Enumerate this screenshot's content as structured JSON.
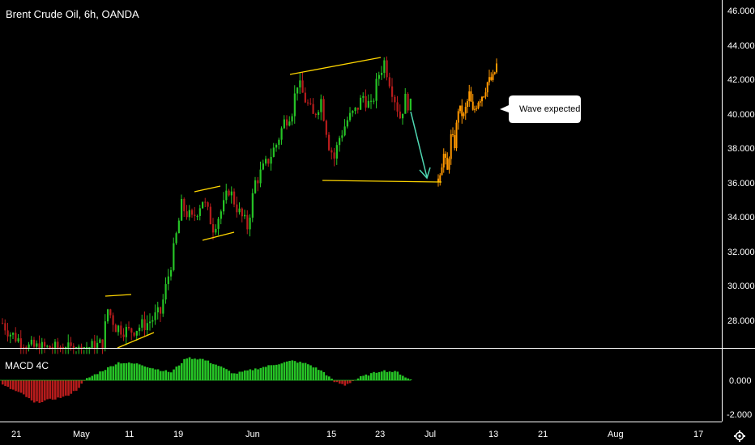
{
  "chart_data": {
    "type": "candlestick",
    "title": "Brent Crude Oil, 6h, OANDA",
    "indicator": {
      "name": "MACD 4C",
      "yticks": [
        "0.000",
        "-2.000"
      ],
      "values": []
    },
    "y_axis": {
      "ylim": [
        26.0,
        46.5
      ],
      "ticks": [
        "46.000",
        "44.000",
        "42.000",
        "40.000",
        "38.000",
        "36.000",
        "34.000",
        "32.000",
        "30.000",
        "28.000"
      ]
    },
    "x_axis": {
      "tick_labels": [
        "21",
        "May",
        "11",
        "19",
        "Jun",
        "15",
        "23",
        "Jul",
        "13",
        "21",
        "Aug",
        "17"
      ]
    },
    "annotation": {
      "text": "Wave expected"
    },
    "colors": {
      "up": "#26c426",
      "down": "#b71c1c",
      "projection": "#ff9800",
      "trendline": "#ffd600",
      "arrow": "#4fd9b3",
      "background": "#000000",
      "macd_up": "#26c426",
      "macd_down": "#b71c1c"
    },
    "grid": false,
    "legend": "none"
  }
}
